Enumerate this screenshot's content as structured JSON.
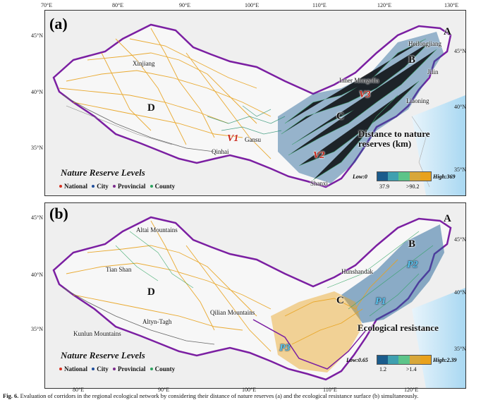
{
  "axes": {
    "top_lon": [
      "70°E",
      "80°E",
      "90°E",
      "100°E",
      "110°E",
      "120°E",
      "130°E"
    ],
    "bottom_lon": [
      "80°E",
      "90°E",
      "100°E",
      "110°E",
      "120°E"
    ],
    "lat": [
      "35°N",
      "40°N",
      "45°N"
    ]
  },
  "legend": {
    "title": "Nature Reserve Levels",
    "items": [
      {
        "label": "National",
        "color": "#d7301f"
      },
      {
        "label": "City",
        "color": "#1f4e9c"
      },
      {
        "label": "Provincial",
        "color": "#7b2a8c"
      },
      {
        "label": "County",
        "color": "#2ca25f"
      }
    ]
  },
  "panel_a": {
    "label": "(a)",
    "zones": [
      "A",
      "B",
      "C",
      "D"
    ],
    "places": [
      "Heilongjiang",
      "Jilin",
      "Liaoning",
      "Inner Mongolia",
      "Xinjiang",
      "Gansu",
      "Qinhai",
      "Shanxi"
    ],
    "hotspots": [
      "V1",
      "V2",
      "V3"
    ],
    "metric_title": "Distance to nature reserves (km)",
    "ramp": {
      "low": "Low:0",
      "high": "High:369",
      "tick1": "37.9",
      "tick2": ">90.2"
    }
  },
  "panel_b": {
    "label": "(b)",
    "zones": [
      "A",
      "B",
      "C",
      "D"
    ],
    "places": [
      "Altai Mountains",
      "Tian Shan",
      "Hunshandak",
      "Qilian Mountains",
      "Altyn-Tagh",
      "Kunlun Mountains"
    ],
    "hotspots": [
      "P1",
      "P2",
      "P3"
    ],
    "metric_title": "Ecological resistance",
    "ramp": {
      "low": "Low:0.65",
      "high": "High:2.39",
      "tick1": "1.2",
      "tick2": ">1.4"
    }
  },
  "ramp_colors": [
    "#1b5c8c",
    "#3fa0b0",
    "#5cc489",
    "#d8a73a",
    "#e8a21d"
  ],
  "caption": {
    "label": "Fig. 6.",
    "text": "Evaluation of corridors in the regional ecological network by considering their distance of nature reserves (a) and the ecological resistance surface (b) simultaneously."
  }
}
